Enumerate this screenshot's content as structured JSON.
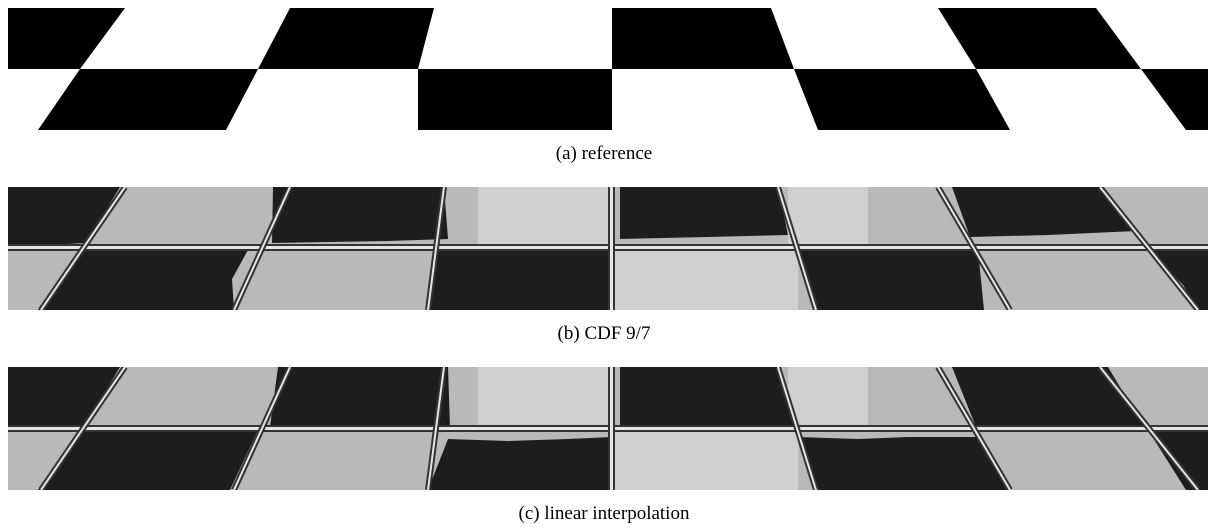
{
  "figure": {
    "panels": [
      {
        "id": "a",
        "caption": "(a) reference"
      },
      {
        "id": "b",
        "caption": "(b) CDF 9/7"
      },
      {
        "id": "c",
        "caption": "(c) linear interpolation"
      }
    ]
  },
  "colors": {
    "reference_dark": "#000000",
    "reference_light": "#ffffff",
    "result_dark": "#1d1d1d",
    "result_light": "#b9b9b9",
    "result_lighter": "#d0d0d0",
    "grid_line": "#e6e6e6",
    "grid_edge": "#333333"
  }
}
